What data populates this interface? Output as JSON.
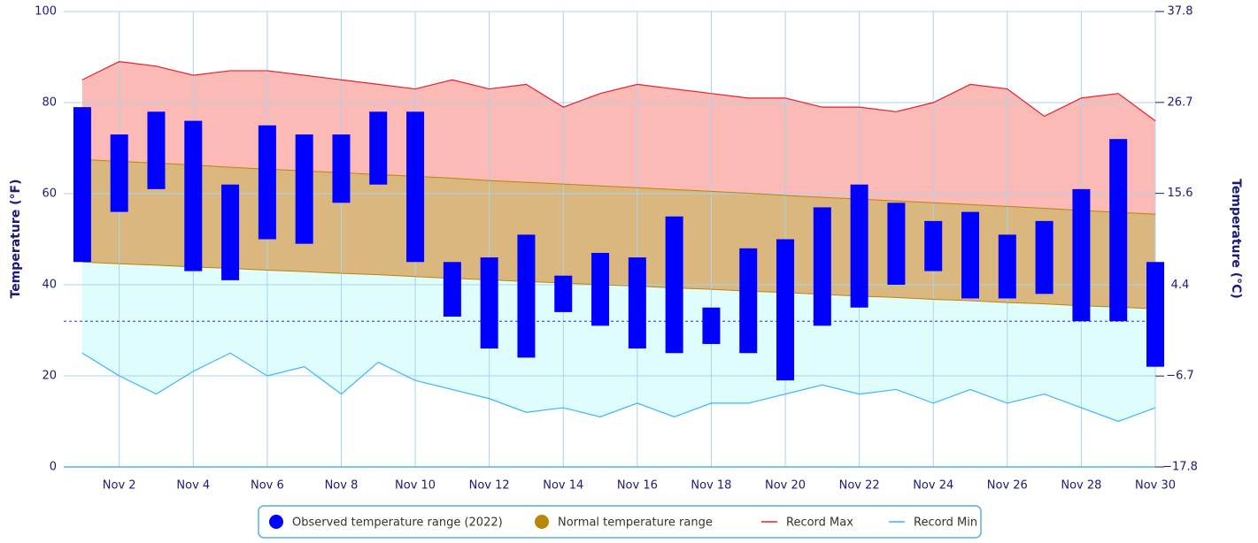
{
  "chart_data": {
    "type": "temperature-range",
    "y_label": "Temperature (°F)",
    "y2_label": "Temperature (°C)",
    "x": [
      1,
      2,
      3,
      4,
      5,
      6,
      7,
      8,
      9,
      10,
      11,
      12,
      13,
      14,
      15,
      16,
      17,
      18,
      19,
      20,
      21,
      22,
      23,
      24,
      25,
      26,
      27,
      28,
      29,
      30
    ],
    "xlim": [
      0.5,
      30
    ],
    "xticks": [
      {
        "value": 2,
        "label": "Nov 2"
      },
      {
        "value": 4,
        "label": "Nov 4"
      },
      {
        "value": 6,
        "label": "Nov 6"
      },
      {
        "value": 8,
        "label": "Nov 8"
      },
      {
        "value": 10,
        "label": "Nov 10"
      },
      {
        "value": 12,
        "label": "Nov 12"
      },
      {
        "value": 14,
        "label": "Nov 14"
      },
      {
        "value": 16,
        "label": "Nov 16"
      },
      {
        "value": 18,
        "label": "Nov 18"
      },
      {
        "value": 20,
        "label": "Nov 20"
      },
      {
        "value": 22,
        "label": "Nov 22"
      },
      {
        "value": 24,
        "label": "Nov 24"
      },
      {
        "value": 26,
        "label": "Nov 26"
      },
      {
        "value": 28,
        "label": "Nov 28"
      },
      {
        "value": 30,
        "label": "Nov 30"
      }
    ],
    "ylim": [
      0,
      100
    ],
    "yticks": [
      0,
      20,
      40,
      60,
      80,
      100
    ],
    "y2lim": [
      -17.8,
      37.8
    ],
    "y2ticks": [
      {
        "value": -17.8,
        "label": "−17.8"
      },
      {
        "value": -6.7,
        "label": "−6.7"
      },
      4.4,
      15.6,
      26.7,
      37.8
    ],
    "grid": true,
    "reference_line": 32,
    "series": [
      {
        "name": "Observed temperature range (2022)",
        "color": "#0000ff",
        "low": [
          45,
          56,
          61,
          43,
          41,
          50,
          49,
          58,
          62,
          45,
          33,
          26,
          24,
          34,
          31,
          26,
          25,
          27,
          25,
          19,
          31,
          35,
          40,
          43,
          37,
          37,
          38,
          32,
          32,
          22
        ],
        "high": [
          79,
          73,
          78,
          76,
          62,
          75,
          73,
          73,
          78,
          78,
          45,
          46,
          51,
          42,
          47,
          46,
          55,
          35,
          48,
          50,
          57,
          62,
          58,
          54,
          56,
          51,
          54,
          61,
          72,
          45
        ]
      },
      {
        "name": "Normal temperature range",
        "color": "#b8860b",
        "fill": "#d9b77e",
        "low": [
          45.0,
          44.6,
          44.3,
          43.9,
          43.6,
          43.2,
          42.9,
          42.5,
          42.2,
          41.8,
          41.4,
          41.1,
          40.7,
          40.4,
          40.0,
          39.7,
          39.3,
          39.0,
          38.6,
          38.3,
          37.9,
          37.5,
          37.2,
          36.8,
          36.5,
          36.1,
          35.8,
          35.4,
          35.1,
          34.7
        ],
        "high": [
          67.5,
          67.1,
          66.7,
          66.3,
          65.8,
          65.4,
          65.0,
          64.6,
          64.2,
          63.8,
          63.4,
          62.9,
          62.5,
          62.1,
          61.7,
          61.3,
          60.9,
          60.5,
          60.1,
          59.6,
          59.2,
          58.8,
          58.4,
          58.0,
          57.6,
          57.2,
          56.8,
          56.3,
          55.9,
          55.5
        ]
      },
      {
        "name": "Record Max",
        "color": "#e8202a",
        "fill": "#fbbab6",
        "values": [
          85,
          89,
          88,
          86,
          87,
          87,
          86,
          85,
          84,
          83,
          85,
          83,
          84,
          79,
          82,
          84,
          83,
          82,
          81,
          81,
          79,
          79,
          78,
          80,
          84,
          83,
          77,
          81,
          82,
          76
        ]
      },
      {
        "name": "Record Min",
        "color": "#3cb4ff",
        "fill": "#e0fdfd",
        "values": [
          25,
          20,
          16,
          21,
          25,
          20,
          22,
          16,
          23,
          19,
          17,
          15,
          12,
          13,
          11,
          14,
          11,
          14,
          14,
          16,
          18,
          16,
          17,
          14,
          17,
          14,
          16,
          13,
          10,
          13
        ]
      }
    ]
  }
}
